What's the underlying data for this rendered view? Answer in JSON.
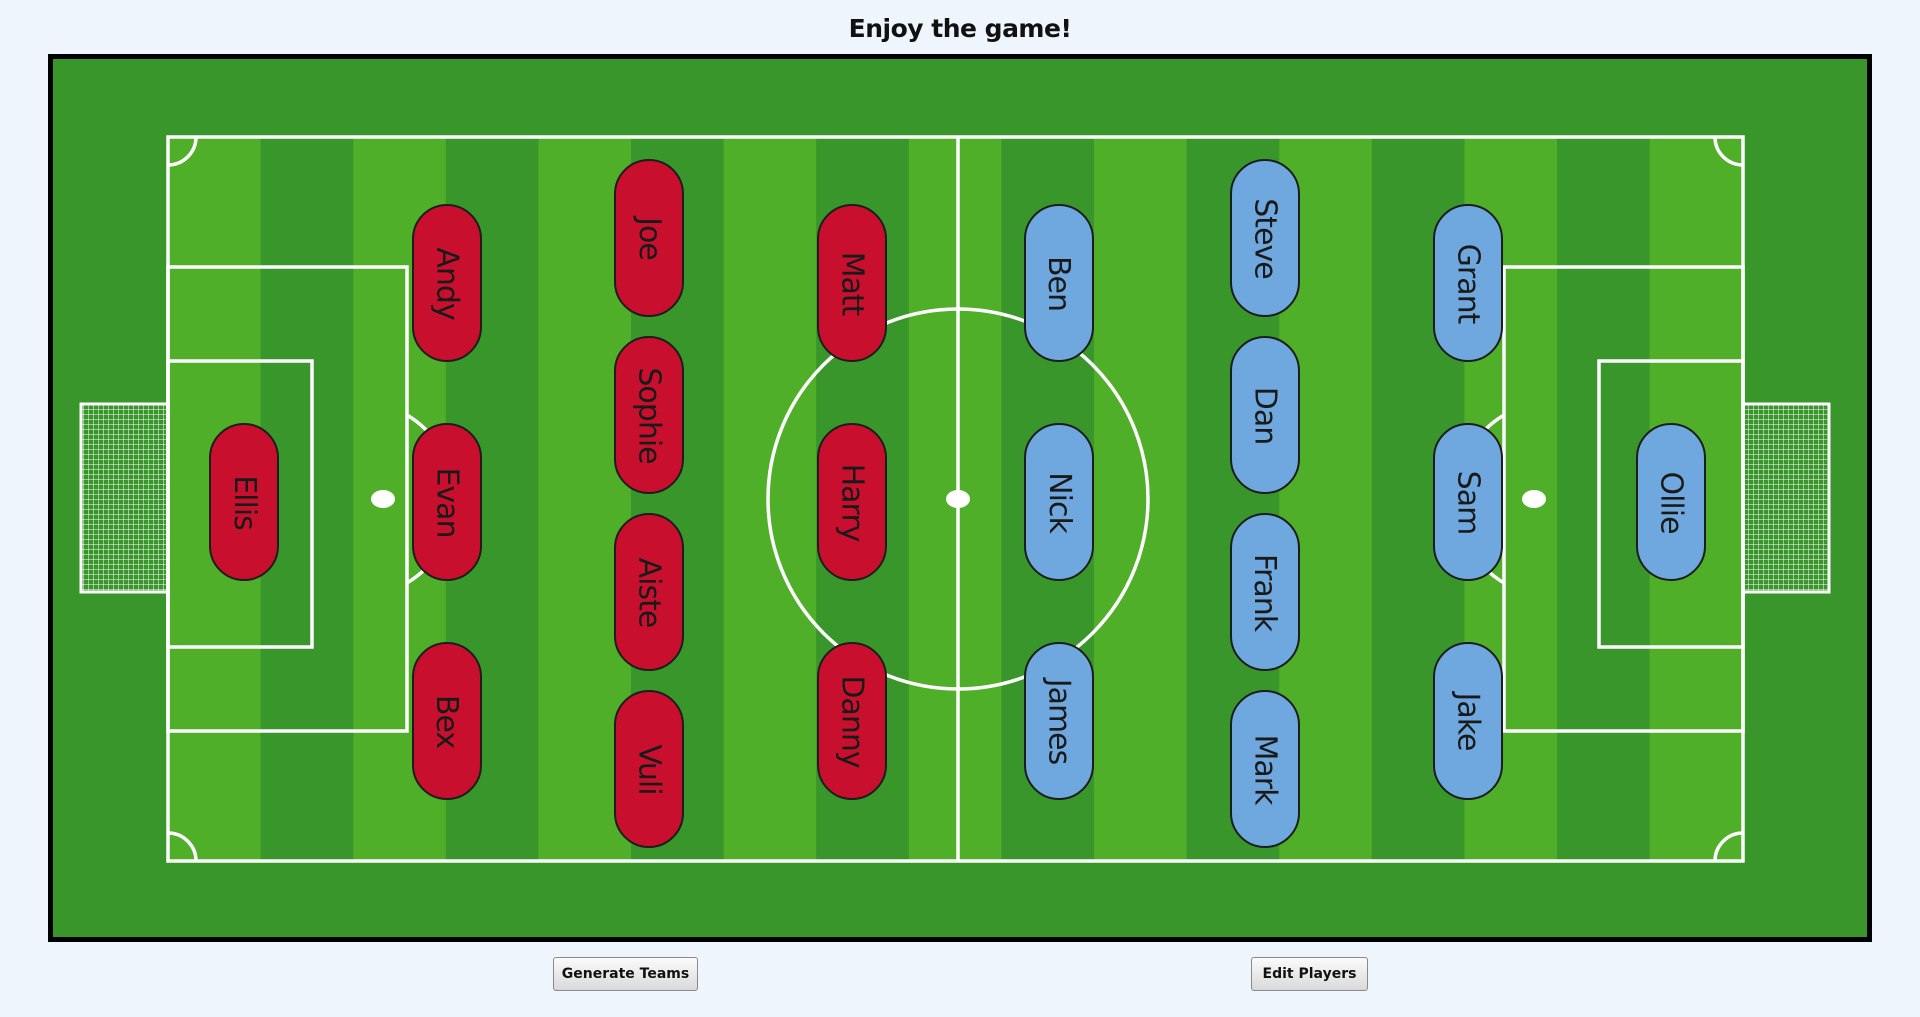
{
  "page": {
    "title": "Enjoy the game!"
  },
  "colors": {
    "team_red": "#c8102e",
    "team_blue": "#6fa8de",
    "pitch_dark": "#38962a",
    "pitch_light": "#4faf28",
    "lines": "#ffffff"
  },
  "teams": {
    "red": {
      "color": "#c8102e",
      "players": [
        "Ellis",
        "Andy",
        "Evan",
        "Bex",
        "Joe",
        "Sophie",
        "Aiste",
        "Vuli",
        "Matt",
        "Harry",
        "Danny"
      ]
    },
    "blue": {
      "color": "#6fa8de",
      "players": [
        "Ben",
        "Nick",
        "James",
        "Steve",
        "Dan",
        "Frank",
        "Mark",
        "Grant",
        "Sam",
        "Jake",
        "Ollie"
      ]
    }
  },
  "buttons": {
    "generate": "Generate Teams",
    "edit": "Edit Players"
  }
}
